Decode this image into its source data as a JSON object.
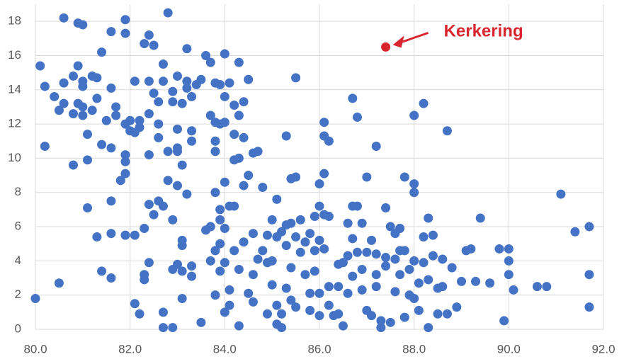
{
  "chart_data": {
    "type": "scatter",
    "xlim": [
      80,
      92
    ],
    "ylim": [
      0,
      19
    ],
    "xticks": [
      {
        "value": 80,
        "label": "80.0"
      },
      {
        "value": 82,
        "label": "82.0"
      },
      {
        "value": 84,
        "label": "84.0"
      },
      {
        "value": 86,
        "label": "86.0"
      },
      {
        "value": 88,
        "label": "88.0"
      },
      {
        "value": 90,
        "label": "90.0"
      },
      {
        "value": 92,
        "label": "92.0"
      }
    ],
    "yticks": [
      0,
      2,
      4,
      6,
      8,
      10,
      12,
      14,
      16,
      18
    ],
    "grid": true,
    "series": [
      {
        "color": "#4472c4",
        "x": [
          80.1,
          80.2,
          80.2,
          80.0,
          80.4,
          80.5,
          80.6,
          80.6,
          80.6,
          80.5,
          80.8,
          80.8,
          80.8,
          80.9,
          80.9,
          80.9,
          81.0,
          81.0,
          81.0,
          81.0,
          81.0,
          81.1,
          81.1,
          81.1,
          81.2,
          81.2,
          81.3,
          81.3,
          81.3,
          81.4,
          81.4,
          81.4,
          81.5,
          81.6,
          81.6,
          81.6,
          81.6,
          81.6,
          81.6,
          81.7,
          81.7,
          81.8,
          81.9,
          81.9,
          81.9,
          81.9,
          81.9,
          81.9,
          81.9,
          82.0,
          82.0,
          82.1,
          82.1,
          82.1,
          82.1,
          82.2,
          82.2,
          82.2,
          82.3,
          82.3,
          82.3,
          82.3,
          82.4,
          82.4,
          82.4,
          82.4,
          82.4,
          82.4,
          82.5,
          82.5,
          82.5,
          82.6,
          82.6,
          82.6,
          82.6,
          82.7,
          82.7,
          82.7,
          82.7,
          82.7,
          82.8,
          82.8,
          82.8,
          82.9,
          82.9,
          82.9,
          82.9,
          82.9,
          83.0,
          83.0,
          83.0,
          83.0,
          83.0,
          83.0,
          83.1,
          83.1,
          83.1,
          83.1,
          83.1,
          83.1,
          83.2,
          83.2,
          83.2,
          83.2,
          83.3,
          83.3,
          83.3,
          83.3,
          83.3,
          83.4,
          83.5,
          83.5,
          83.6,
          83.6,
          83.7,
          83.7,
          83.7,
          83.7,
          83.8,
          83.8,
          83.8,
          83.8,
          83.8,
          83.8,
          83.8,
          83.9,
          83.9,
          83.9,
          83.9,
          83.9,
          83.9,
          84.0,
          84.0,
          84.0,
          84.0,
          84.0,
          84.0,
          84.0,
          84.1,
          84.1,
          84.1,
          84.1,
          84.2,
          84.2,
          84.2,
          84.2,
          84.2,
          84.3,
          84.3,
          84.3,
          84.3,
          84.3,
          84.4,
          84.4,
          84.4,
          84.4,
          84.5,
          84.5,
          84.5,
          84.6,
          84.6,
          84.6,
          84.6,
          84.7,
          84.7,
          84.8,
          84.8,
          84.9,
          84.9,
          84.9,
          85.0,
          85.0,
          85.0,
          85.1,
          85.1,
          85.1,
          85.1,
          85.2,
          85.2,
          85.2,
          85.3,
          85.3,
          85.3,
          85.3,
          85.4,
          85.4,
          85.4,
          85.4,
          85.5,
          85.5,
          85.5,
          85.5,
          85.6,
          85.6,
          85.7,
          85.7,
          85.8,
          85.8,
          85.8,
          85.9,
          85.9,
          85.9,
          86.0,
          86.0,
          86.0,
          86.0,
          86.0,
          86.1,
          86.1,
          86.1,
          86.1,
          86.1,
          86.2,
          86.2,
          86.2,
          86.2,
          86.3,
          86.4,
          86.4,
          86.4,
          86.5,
          86.5,
          86.6,
          86.6,
          86.6,
          86.7,
          86.7,
          86.7,
          86.7,
          86.8,
          86.8,
          86.8,
          86.9,
          86.9,
          86.9,
          87.0,
          87.0,
          87.0,
          87.1,
          87.1,
          87.2,
          87.2,
          87.2,
          87.2,
          87.3,
          87.3,
          87.4,
          87.4,
          87.4,
          87.5,
          87.5,
          87.6,
          87.6,
          87.6,
          87.7,
          87.7,
          87.7,
          87.8,
          87.8,
          87.8,
          87.9,
          87.9,
          88.0,
          88.0,
          88.0,
          88.0,
          88.0,
          88.1,
          88.1,
          88.2,
          88.2,
          88.2,
          88.3,
          88.3,
          88.3,
          88.4,
          88.4,
          88.5,
          88.5,
          88.6,
          88.6,
          88.7,
          88.7,
          88.8,
          88.9,
          89.0,
          89.1,
          89.2,
          89.3,
          89.4,
          89.6,
          89.8,
          89.9,
          90.0,
          90.0,
          90.0,
          90.1,
          90.6,
          90.8,
          91.1,
          91.4,
          91.7,
          91.7,
          91.7
        ],
        "y": [
          15.4,
          14.2,
          10.7,
          1.8,
          13.6,
          12.8,
          13.2,
          14.4,
          18.2,
          2.7,
          14.8,
          12.6,
          9.6,
          15.4,
          13.2,
          17.9,
          17.8,
          14.5,
          14.2,
          13.0,
          12.5,
          11.4,
          9.9,
          7.1,
          14.8,
          12.8,
          14.7,
          13.5,
          5.4,
          16.2,
          10.8,
          3.4,
          12.2,
          17.4,
          14.1,
          10.6,
          7.5,
          5.6,
          3.0,
          12.5,
          13.0,
          8.7,
          18.1,
          17.3,
          12.0,
          10.2,
          9.8,
          9.1,
          5.5,
          12.2,
          11.6,
          14.5,
          11.5,
          5.5,
          1.5,
          12.2,
          11.8,
          0.9,
          16.7,
          5.9,
          3.2,
          2.9,
          17.2,
          14.5,
          12.6,
          10.2,
          7.3,
          3.9,
          16.6,
          13.8,
          6.7,
          13.3,
          12.0,
          11.2,
          7.5,
          15.5,
          14.5,
          7.2,
          1.0,
          0.1,
          18.5,
          10.4,
          8.7,
          13.9,
          13.3,
          6.4,
          3.5,
          0.1,
          14.8,
          11.7,
          10.6,
          10.4,
          8.4,
          3.8,
          13.2,
          9.6,
          5.2,
          4.9,
          3.4,
          1.8,
          16.4,
          14.5,
          14.1,
          7.9,
          13.6,
          11.6,
          11.0,
          3.7,
          3.1,
          14.3,
          14.6,
          0.4,
          16.0,
          5.8,
          15.6,
          12.5,
          6.0,
          4.0,
          14.4,
          12.1,
          11.0,
          10.4,
          8.0,
          4.6,
          2.0,
          14.3,
          12.0,
          7.0,
          6.4,
          5.0,
          3.4,
          16.1,
          13.6,
          12.1,
          8.6,
          5.9,
          3.9,
          1.0,
          14.4,
          7.2,
          2.3,
          1.4,
          13.1,
          11.4,
          9.9,
          7.2,
          4.6,
          15.6,
          12.5,
          10.0,
          3.5,
          0.2,
          13.3,
          11.2,
          8.4,
          5.1,
          14.6,
          9.0,
          2.1,
          10.3,
          5.6,
          3.2,
          1.6,
          10.4,
          4.1,
          8.3,
          4.6,
          5.5,
          3.9,
          0.9,
          6.4,
          4.0,
          2.6,
          7.6,
          5.4,
          1.4,
          0.3,
          5.7,
          0.9,
          0.1,
          11.3,
          6.1,
          4.9,
          2.4,
          8.8,
          6.2,
          3.6,
          1.7,
          14.7,
          8.9,
          5.4,
          1.3,
          6.4,
          4.5,
          5.1,
          3.2,
          5.6,
          2.1,
          1.1,
          6.6,
          4.6,
          3.4,
          8.5,
          7.2,
          5.2,
          2.1,
          0.8,
          12.1,
          11.3,
          9.1,
          6.7,
          4.7,
          11.0,
          6.6,
          2.5,
          1.4,
          0.8,
          3.8,
          2.5,
          0.9,
          3.9,
          0.2,
          6.2,
          4.3,
          2.1,
          13.5,
          7.2,
          5.3,
          3.1,
          12.4,
          7.2,
          4.5,
          6.2,
          3.5,
          2.3,
          8.9,
          4.5,
          1.1,
          5.2,
          0.8,
          10.7,
          4.4,
          3.2,
          2.5,
          0.5,
          0.1,
          7.1,
          4.2,
          3.7,
          6.0,
          0.4,
          5.6,
          4.1,
          2.2,
          5.9,
          4.6,
          3.2,
          8.9,
          4.6,
          0.7,
          3.5,
          2.0,
          12.5,
          8.5,
          8.0,
          4.0,
          1.8,
          2.7,
          1.1,
          13.2,
          5.4,
          3.9,
          6.5,
          2.9,
          0.1,
          5.5,
          4.3,
          2.4,
          0.9,
          4.1,
          2.5,
          11.6,
          0.9,
          3.6,
          1.3,
          2.8,
          4.6,
          4.7,
          2.8,
          6.5,
          2.7,
          4.7,
          0.5,
          4.7,
          4.0,
          3.2,
          2.3,
          2.5,
          2.5,
          7.9,
          5.7,
          6.0,
          3.2,
          1.3
        ]
      },
      {
        "name": "Kerkering",
        "color": "#d9262e",
        "x": [
          87.4
        ],
        "y": [
          16.5
        ]
      }
    ]
  }
}
